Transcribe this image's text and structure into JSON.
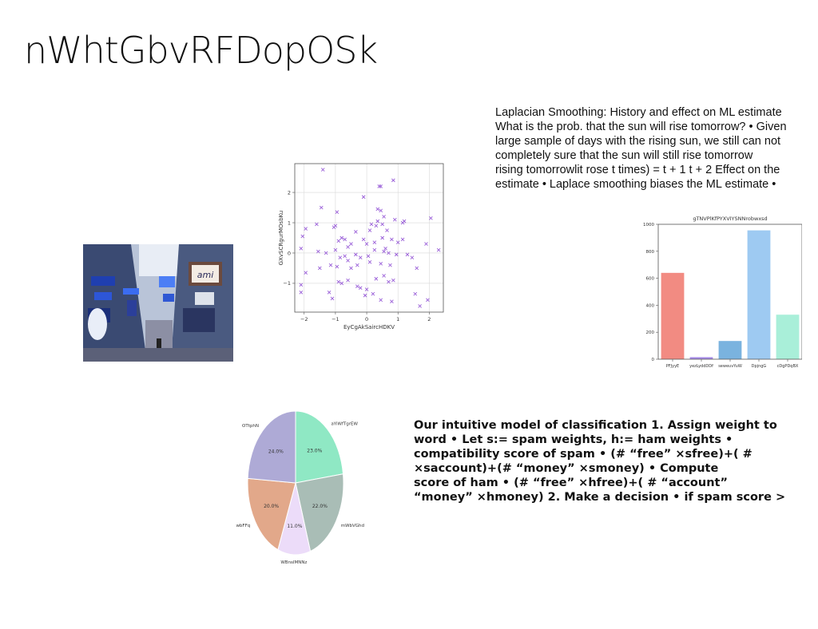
{
  "slide": {
    "title": "nWhtGbvRFDopOSk",
    "paragraph_lines": [
      "Laplacian Smoothing: History and effect on ML estimate",
      "What is the prob. that the sun will rise tomorrow? • Given",
      "large sample of days with the rising sun, we still can not",
      "completely sure that the sun will still rise tomorrow",
      "rising tomorrowlit rose t times) = t + 1 t + 2 Effect on the",
      "estimate • Laplace smoothing biases the ML estimate •"
    ],
    "bold_lines": [
      "Our intuitive model of classification 1. Assign weight to",
      "word • Let s:= spam weights, h:= ham weights •",
      "compatibility score of spam • (# “free” ×sfree)+( #",
      "×saccount)+(# “money” ×smoney) • Compute",
      "score of ham • (# “free” ×hfree)+( # “account”",
      "“money” ×hmoney) 2. Make a decision • if spam score >"
    ],
    "photo": {
      "sign_text": "ami",
      "description_icon": "street-photo"
    }
  },
  "chart_data": [
    {
      "type": "scatter",
      "title": "",
      "xlabel": "EyCgAkSaircHDKV",
      "ylabel": "GXvSCRgurMOsbKu",
      "xlim": [
        -2.3,
        2.45
      ],
      "ylim": [
        -1.95,
        2.95
      ],
      "xticks": [
        -2,
        -1,
        0,
        1,
        2
      ],
      "yticks": [
        -1,
        0,
        1,
        2
      ],
      "grid": true,
      "marker": "x",
      "color": "#9a5fd8",
      "points": [
        [
          -1.4,
          2.75
        ],
        [
          0.85,
          2.4
        ],
        [
          0.4,
          2.2
        ],
        [
          0.45,
          2.2
        ],
        [
          -0.1,
          1.85
        ],
        [
          0.35,
          1.45
        ],
        [
          0.45,
          1.4
        ],
        [
          0.55,
          1.2
        ],
        [
          -1.45,
          1.5
        ],
        [
          -0.95,
          1.35
        ],
        [
          -1.6,
          0.95
        ],
        [
          -2.05,
          0.55
        ],
        [
          -1.95,
          0.8
        ],
        [
          0.9,
          1.1
        ],
        [
          1.15,
          1.0
        ],
        [
          1.2,
          1.05
        ],
        [
          -1.0,
          0.9
        ],
        [
          -1.05,
          0.85
        ],
        [
          0.1,
          0.75
        ],
        [
          0.15,
          0.95
        ],
        [
          0.3,
          0.9
        ],
        [
          0.35,
          1.05
        ],
        [
          0.5,
          0.95
        ],
        [
          0.65,
          0.75
        ],
        [
          2.05,
          1.15
        ],
        [
          -0.35,
          0.7
        ],
        [
          -0.1,
          0.45
        ],
        [
          -0.7,
          0.45
        ],
        [
          -0.8,
          0.5
        ],
        [
          -0.9,
          0.4
        ],
        [
          -0.6,
          0.2
        ],
        [
          -0.5,
          0.3
        ],
        [
          0.0,
          0.3
        ],
        [
          0.25,
          0.35
        ],
        [
          0.5,
          0.5
        ],
        [
          0.8,
          0.45
        ],
        [
          1.0,
          0.35
        ],
        [
          1.15,
          0.45
        ],
        [
          1.9,
          0.3
        ],
        [
          2.3,
          0.1
        ],
        [
          -2.1,
          0.15
        ],
        [
          -1.55,
          0.05
        ],
        [
          -1.3,
          0.0
        ],
        [
          -1.0,
          0.1
        ],
        [
          -0.85,
          -0.15
        ],
        [
          -0.7,
          -0.1
        ],
        [
          -0.35,
          -0.05
        ],
        [
          -0.2,
          -0.15
        ],
        [
          0.05,
          -0.1
        ],
        [
          0.25,
          0.1
        ],
        [
          0.55,
          0.05
        ],
        [
          0.7,
          0.0
        ],
        [
          0.95,
          -0.05
        ],
        [
          1.3,
          -0.05
        ],
        [
          1.45,
          -0.15
        ],
        [
          -1.15,
          -0.4
        ],
        [
          -0.95,
          -0.45
        ],
        [
          -0.5,
          -0.5
        ],
        [
          -0.3,
          -0.4
        ],
        [
          0.1,
          -0.3
        ],
        [
          0.45,
          -0.35
        ],
        [
          0.75,
          -0.4
        ],
        [
          1.6,
          -0.5
        ],
        [
          -1.95,
          -0.65
        ],
        [
          -1.5,
          -0.5
        ],
        [
          -0.9,
          -0.95
        ],
        [
          -0.8,
          -1.0
        ],
        [
          -0.6,
          -0.9
        ],
        [
          -0.3,
          -1.1
        ],
        [
          -0.2,
          -1.15
        ],
        [
          0.0,
          -1.2
        ],
        [
          0.3,
          -0.85
        ],
        [
          0.55,
          -0.75
        ],
        [
          0.7,
          -0.95
        ],
        [
          0.85,
          -0.9
        ],
        [
          1.55,
          -1.35
        ],
        [
          -2.1,
          -1.05
        ],
        [
          -2.1,
          -1.3
        ],
        [
          -1.2,
          -1.3
        ],
        [
          -1.1,
          -1.5
        ],
        [
          -0.05,
          -1.4
        ],
        [
          0.2,
          -1.35
        ],
        [
          0.45,
          -1.55
        ],
        [
          0.8,
          -1.6
        ],
        [
          1.7,
          -1.75
        ],
        [
          1.95,
          -1.55
        ],
        [
          -0.6,
          -0.25
        ],
        [
          0.6,
          0.15
        ]
      ]
    },
    {
      "type": "bar",
      "title": "gTNVPlKfPYXVIYSNNrobwxsd",
      "xlabel": "",
      "ylabel": "",
      "categories": [
        "PFJyyE",
        "yezLyddDDf",
        "seweuvYuW",
        "DpjngG",
        "cDgPDqBX"
      ],
      "values": [
        640,
        15,
        135,
        955,
        330
      ],
      "colors": [
        "#f28b82",
        "#a78be8",
        "#7ab3df",
        "#9ecaf2",
        "#a9efd9"
      ],
      "ylim": [
        0,
        1000
      ],
      "yticks": [
        0,
        200,
        400,
        600,
        800,
        1000
      ],
      "grid": false
    },
    {
      "type": "pie",
      "title": "",
      "labels": [
        "aYiWfTgrEW",
        "mWbVGhd",
        "WBnsIMNNz",
        "wbFFq",
        "OTtphN"
      ],
      "values": [
        23.0,
        22.0,
        11.0,
        20.0,
        24.0
      ],
      "colors": [
        "#8fe8c4",
        "#a9bdb6",
        "#ecdcf9",
        "#e2a88a",
        "#aeaad6"
      ],
      "autopct": [
        "23.0%",
        "22.0%",
        "11.0%",
        "20.0%",
        "24.0%"
      ]
    }
  ]
}
